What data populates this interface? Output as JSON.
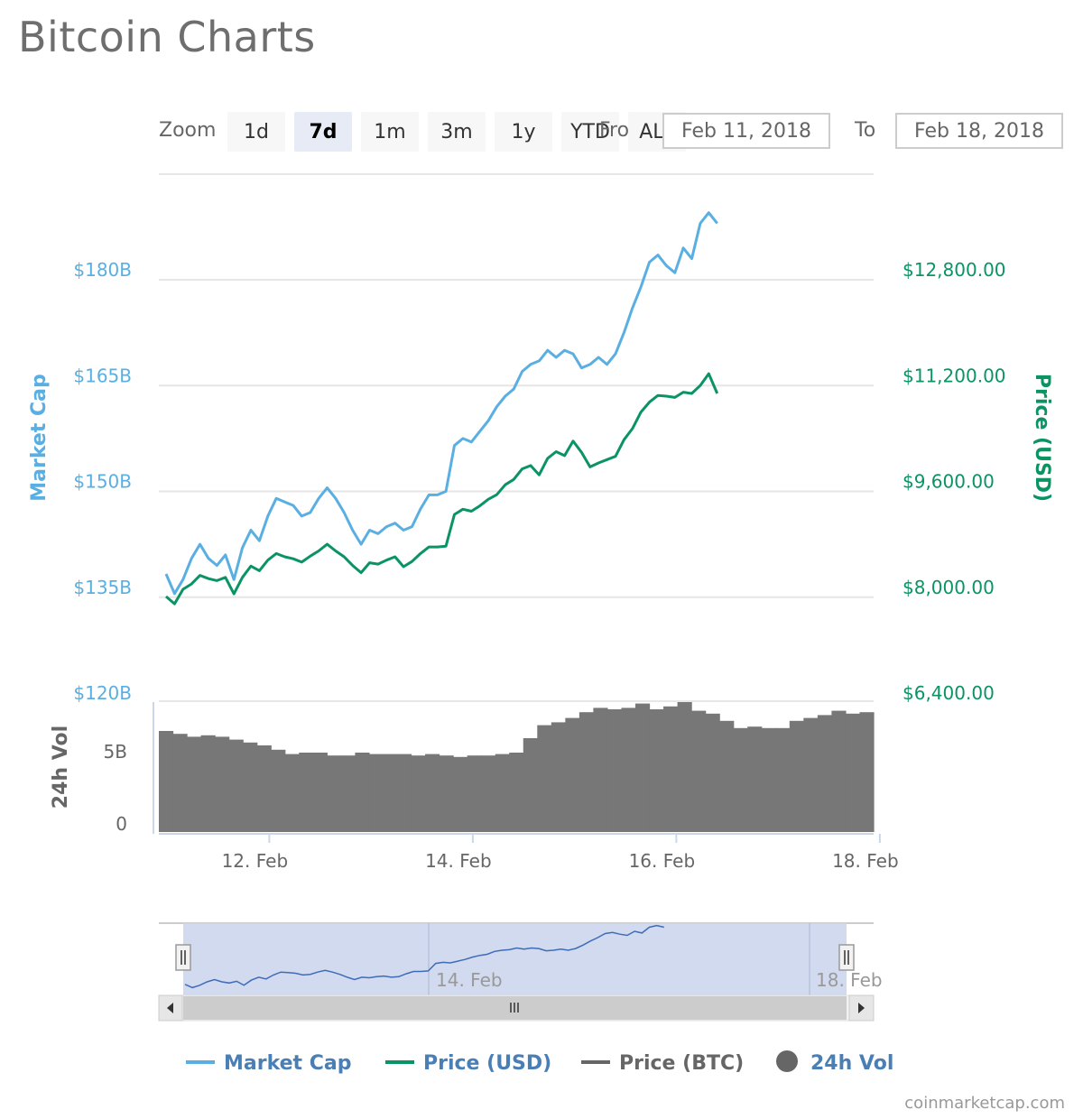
{
  "title": "Bitcoin Charts",
  "zoom": {
    "label": "Zoom",
    "buttons": [
      "1d",
      "7d",
      "1m",
      "3m",
      "1y",
      "YTD",
      "ALL"
    ],
    "active": "7d"
  },
  "range": {
    "from_label": "From",
    "from_value": "Feb 11, 2018",
    "to_label": "To",
    "to_value": "Feb 18, 2018"
  },
  "chart_data": {
    "type": "line",
    "x_ticks": [
      "12. Feb",
      "14. Feb",
      "16. Feb",
      "18. Feb"
    ],
    "left_axis": {
      "label": "Market Cap",
      "ticks": [
        "$120B",
        "$135B",
        "$150B",
        "$165B",
        "$180B"
      ],
      "values": [
        120,
        135,
        150,
        165,
        180
      ],
      "color": "#5aafe2"
    },
    "right_axis": {
      "label": "Price (USD)",
      "ticks": [
        "$6,400.00",
        "$8,000.00",
        "$9,600.00",
        "$11,200.00",
        "$12,800.00"
      ],
      "values": [
        6400,
        8000,
        9600,
        11200,
        12800
      ],
      "color": "#0a9463"
    },
    "series": [
      {
        "name": "Market Cap",
        "unit": "B USD",
        "color": "#5aafe2",
        "points": [
          [
            "Feb 11 12:00",
            138.3
          ],
          [
            "Feb 11 14:00",
            135.5
          ],
          [
            "Feb 11 16:00",
            137.5
          ],
          [
            "Feb 11 18:00",
            140.5
          ],
          [
            "Feb 11 20:00",
            142.5
          ],
          [
            "Feb 11 22:00",
            140.5
          ],
          [
            "Feb 12 00:00",
            139.5
          ],
          [
            "Feb 12 02:00",
            141.0
          ],
          [
            "Feb 12 04:00",
            137.5
          ],
          [
            "Feb 12 06:00",
            142.0
          ],
          [
            "Feb 12 08:00",
            144.5
          ],
          [
            "Feb 12 10:00",
            143.0
          ],
          [
            "Feb 12 12:00",
            146.5
          ],
          [
            "Feb 12 14:00",
            149.0
          ],
          [
            "Feb 12 16:00",
            148.5
          ],
          [
            "Feb 12 18:00",
            148.0
          ],
          [
            "Feb 12 20:00",
            146.5
          ],
          [
            "Feb 12 22:00",
            147.0
          ],
          [
            "Feb 13 00:00",
            149.0
          ],
          [
            "Feb 13 02:00",
            150.5
          ],
          [
            "Feb 13 04:00",
            149.0
          ],
          [
            "Feb 13 06:00",
            147.0
          ],
          [
            "Feb 13 08:00",
            144.5
          ],
          [
            "Feb 13 10:00",
            142.5
          ],
          [
            "Feb 13 12:00",
            144.5
          ],
          [
            "Feb 13 14:00",
            144.0
          ],
          [
            "Feb 13 16:00",
            145.0
          ],
          [
            "Feb 13 18:00",
            145.5
          ],
          [
            "Feb 13 20:00",
            144.5
          ],
          [
            "Feb 13 22:00",
            145.0
          ],
          [
            "Feb 14 00:00",
            147.5
          ],
          [
            "Feb 14 02:00",
            149.5
          ],
          [
            "Feb 14 04:00",
            149.5
          ],
          [
            "Feb 14 06:00",
            150.0
          ],
          [
            "Feb 14 08:00",
            156.5
          ],
          [
            "Feb 14 10:00",
            157.5
          ],
          [
            "Feb 14 12:00",
            157.0
          ],
          [
            "Feb 14 14:00",
            158.5
          ],
          [
            "Feb 14 16:00",
            160.0
          ],
          [
            "Feb 14 18:00",
            162.0
          ],
          [
            "Feb 14 20:00",
            163.5
          ],
          [
            "Feb 14 22:00",
            164.5
          ],
          [
            "Feb 15 00:00",
            167.0
          ],
          [
            "Feb 15 02:00",
            168.0
          ],
          [
            "Feb 15 04:00",
            168.5
          ],
          [
            "Feb 15 06:00",
            170.0
          ],
          [
            "Feb 15 08:00",
            169.0
          ],
          [
            "Feb 15 10:00",
            170.0
          ],
          [
            "Feb 15 12:00",
            169.5
          ],
          [
            "Feb 15 14:00",
            167.5
          ],
          [
            "Feb 15 16:00",
            168.0
          ],
          [
            "Feb 15 18:00",
            169.0
          ],
          [
            "Feb 15 20:00",
            168.0
          ],
          [
            "Feb 15 22:00",
            169.5
          ],
          [
            "Feb 16 00:00",
            172.5
          ],
          [
            "Feb 16 02:00",
            176.0
          ],
          [
            "Feb 16 04:00",
            179.0
          ],
          [
            "Feb 16 06:00",
            182.5
          ],
          [
            "Feb 16 08:00",
            183.5
          ],
          [
            "Feb 16 10:00",
            182.0
          ],
          [
            "Feb 16 12:00",
            181.0
          ],
          [
            "Feb 16 14:00",
            184.5
          ],
          [
            "Feb 16 16:00",
            183.0
          ],
          [
            "Feb 16 18:00",
            188.0
          ],
          [
            "Feb 16 20:00",
            189.5
          ],
          [
            "Feb 16 22:00",
            188.0
          ]
        ]
      },
      {
        "name": "Price (USD)",
        "unit": "USD",
        "color": "#0a9463",
        "points": [
          [
            "Feb 11 12:00",
            8010
          ],
          [
            "Feb 11 14:00",
            7900
          ],
          [
            "Feb 11 16:00",
            8120
          ],
          [
            "Feb 11 18:00",
            8200
          ],
          [
            "Feb 11 20:00",
            8330
          ],
          [
            "Feb 11 22:00",
            8280
          ],
          [
            "Feb 12 00:00",
            8250
          ],
          [
            "Feb 12 02:00",
            8300
          ],
          [
            "Feb 12 04:00",
            8050
          ],
          [
            "Feb 12 06:00",
            8300
          ],
          [
            "Feb 12 08:00",
            8470
          ],
          [
            "Feb 12 10:00",
            8400
          ],
          [
            "Feb 12 12:00",
            8560
          ],
          [
            "Feb 12 14:00",
            8660
          ],
          [
            "Feb 12 16:00",
            8610
          ],
          [
            "Feb 12 18:00",
            8580
          ],
          [
            "Feb 12 20:00",
            8530
          ],
          [
            "Feb 12 22:00",
            8620
          ],
          [
            "Feb 13 00:00",
            8700
          ],
          [
            "Feb 13 02:00",
            8800
          ],
          [
            "Feb 13 04:00",
            8700
          ],
          [
            "Feb 13 06:00",
            8610
          ],
          [
            "Feb 13 08:00",
            8480
          ],
          [
            "Feb 13 10:00",
            8370
          ],
          [
            "Feb 13 12:00",
            8520
          ],
          [
            "Feb 13 14:00",
            8500
          ],
          [
            "Feb 13 16:00",
            8560
          ],
          [
            "Feb 13 18:00",
            8610
          ],
          [
            "Feb 13 20:00",
            8460
          ],
          [
            "Feb 13 22:00",
            8540
          ],
          [
            "Feb 14 00:00",
            8660
          ],
          [
            "Feb 14 02:00",
            8760
          ],
          [
            "Feb 14 04:00",
            8760
          ],
          [
            "Feb 14 06:00",
            8770
          ],
          [
            "Feb 14 08:00",
            9250
          ],
          [
            "Feb 14 10:00",
            9330
          ],
          [
            "Feb 14 12:00",
            9300
          ],
          [
            "Feb 14 14:00",
            9380
          ],
          [
            "Feb 14 16:00",
            9480
          ],
          [
            "Feb 14 18:00",
            9550
          ],
          [
            "Feb 14 20:00",
            9700
          ],
          [
            "Feb 14 22:00",
            9780
          ],
          [
            "Feb 15 00:00",
            9940
          ],
          [
            "Feb 15 02:00",
            9990
          ],
          [
            "Feb 15 04:00",
            9850
          ],
          [
            "Feb 15 06:00",
            10100
          ],
          [
            "Feb 15 08:00",
            10200
          ],
          [
            "Feb 15 10:00",
            10140
          ],
          [
            "Feb 15 12:00",
            10360
          ],
          [
            "Feb 15 14:00",
            10190
          ],
          [
            "Feb 15 16:00",
            9970
          ],
          [
            "Feb 15 18:00",
            10030
          ],
          [
            "Feb 15 20:00",
            10080
          ],
          [
            "Feb 15 22:00",
            10130
          ],
          [
            "Feb 16 00:00",
            10380
          ],
          [
            "Feb 16 02:00",
            10550
          ],
          [
            "Feb 16 04:00",
            10800
          ],
          [
            "Feb 16 06:00",
            10950
          ],
          [
            "Feb 16 08:00",
            11050
          ],
          [
            "Feb 16 10:00",
            11040
          ],
          [
            "Feb 16 12:00",
            11020
          ],
          [
            "Feb 16 14:00",
            11100
          ],
          [
            "Feb 16 16:00",
            11080
          ],
          [
            "Feb 16 18:00",
            11200
          ],
          [
            "Feb 16 20:00",
            11380
          ],
          [
            "Feb 16 22:00",
            11080
          ]
        ]
      }
    ],
    "volume": {
      "label": "24h Vol",
      "ticks": [
        "0",
        "5B"
      ],
      "color": "#777777",
      "values": [
        7.0,
        6.8,
        6.6,
        6.7,
        6.6,
        6.4,
        6.2,
        6.0,
        5.7,
        5.4,
        5.5,
        5.5,
        5.3,
        5.3,
        5.5,
        5.4,
        5.4,
        5.4,
        5.3,
        5.4,
        5.3,
        5.2,
        5.3,
        5.3,
        5.4,
        5.5,
        6.5,
        7.4,
        7.6,
        7.9,
        8.3,
        8.6,
        8.5,
        8.6,
        8.9,
        8.5,
        8.7,
        9.0,
        8.4,
        8.2,
        7.7,
        7.2,
        7.3,
        7.2,
        7.2,
        7.7,
        7.9,
        8.1,
        8.4,
        8.2,
        8.3
      ]
    },
    "navigator": {
      "ticks": [
        "14. Feb",
        "18. Feb"
      ]
    }
  },
  "legend": [
    {
      "name": "Market Cap",
      "color": "#5aafe2",
      "marker": "line",
      "label_color": "#4a7fb5"
    },
    {
      "name": "Price (USD)",
      "color": "#0a9463",
      "marker": "line",
      "label_color": "#4a7fb5"
    },
    {
      "name": "Price (BTC)",
      "color": "#666666",
      "marker": "line",
      "label_color": "#666666"
    },
    {
      "name": "24h Vol",
      "color": "#666666",
      "marker": "circle",
      "label_color": "#4a7fb5"
    }
  ],
  "credit": "coinmarketcap.com"
}
